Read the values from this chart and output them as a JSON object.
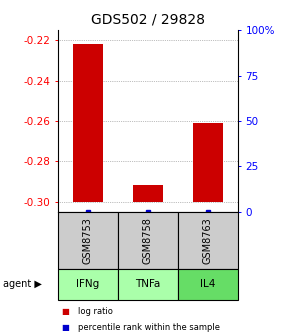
{
  "title": "GDS502 / 29828",
  "samples": [
    "GSM8753",
    "GSM8758",
    "GSM8763"
  ],
  "agents": [
    "IFNg",
    "TNFa",
    "IL4"
  ],
  "log_ratios": [
    -0.222,
    -0.292,
    -0.261
  ],
  "percentile_ranks": [
    0.0,
    0.0,
    0.0
  ],
  "ylim_left": [
    -0.305,
    -0.215
  ],
  "yticks_left": [
    -0.3,
    -0.28,
    -0.26,
    -0.24,
    -0.22
  ],
  "yticks_right": [
    0,
    25,
    50,
    75,
    100
  ],
  "baseline": -0.3,
  "bar_color": "#cc0000",
  "pct_color": "#0000cc",
  "sample_bg": "#cccccc",
  "agent_colors": [
    "#aaffaa",
    "#aaffaa",
    "#66dd66"
  ],
  "legend_log_color": "#cc0000",
  "legend_pct_color": "#0000cc",
  "title_fontsize": 10,
  "tick_fontsize": 7.5,
  "bar_width": 0.5
}
